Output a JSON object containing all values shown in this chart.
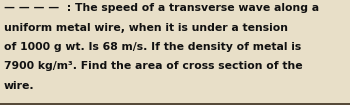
{
  "lines": [
    "— — — —  : The speed of a transverse wave along a",
    "uniform metal wire, when it is under a tension",
    "of 1000 g wt. Is 68 m/s. If the density of metal is",
    "7900 kg/m³. Find the area of cross section of the",
    "wire."
  ],
  "background_color": "#e8dfc8",
  "text_color": "#111111",
  "font_size": 7.8,
  "fig_width": 3.5,
  "fig_height": 1.05,
  "dpi": 100,
  "border_color": "#3a2e1e",
  "border_lw": 1.2
}
